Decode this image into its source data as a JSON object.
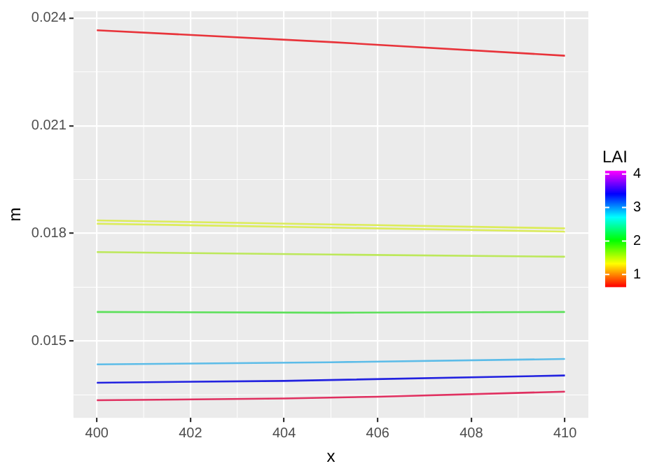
{
  "chart_data": {
    "type": "line",
    "xlabel": "x",
    "ylabel": "m",
    "clabel": "LAI",
    "xlim": [
      399.5,
      410.5
    ],
    "xticks": [
      400,
      402,
      404,
      406,
      408,
      410
    ],
    "ylim": [
      0.01286,
      0.02419
    ],
    "yticks": [
      0.015,
      0.018,
      0.021,
      0.024
    ],
    "clim": [
      0.63,
      4.1
    ],
    "cticks": [
      1,
      2,
      3,
      4
    ],
    "grid": true,
    "line_style": "solid",
    "marker": "none",
    "series": [
      {
        "color": "#e8333a",
        "x": [
          400,
          405,
          410
        ],
        "values": [
          0.02366,
          0.02333,
          0.02295
        ]
      },
      {
        "color": "#dcec5a",
        "x": [
          400,
          405,
          410
        ],
        "values": [
          0.01836,
          0.01825,
          0.01814
        ]
      },
      {
        "color": "#dcec5a",
        "x": [
          400,
          405,
          410
        ],
        "values": [
          0.01827,
          0.01816,
          0.01805
        ]
      },
      {
        "color": "#bce85a",
        "x": [
          400,
          405,
          410
        ],
        "values": [
          0.01748,
          0.01741,
          0.01735
        ]
      },
      {
        "color": "#5ce05a",
        "x": [
          400,
          405,
          410
        ],
        "values": [
          0.01581,
          0.01579,
          0.01581
        ]
      },
      {
        "color": "#5cbce8",
        "x": [
          400,
          405,
          410
        ],
        "values": [
          0.01435,
          0.01441,
          0.0145
        ]
      },
      {
        "color": "#2222e0",
        "x": [
          400,
          404,
          410
        ],
        "values": [
          0.01384,
          0.01389,
          0.01404
        ]
      },
      {
        "color": "#e03060",
        "x": [
          400,
          404,
          406,
          410
        ],
        "values": [
          0.01335,
          0.0134,
          0.01345,
          0.01359
        ]
      }
    ]
  }
}
